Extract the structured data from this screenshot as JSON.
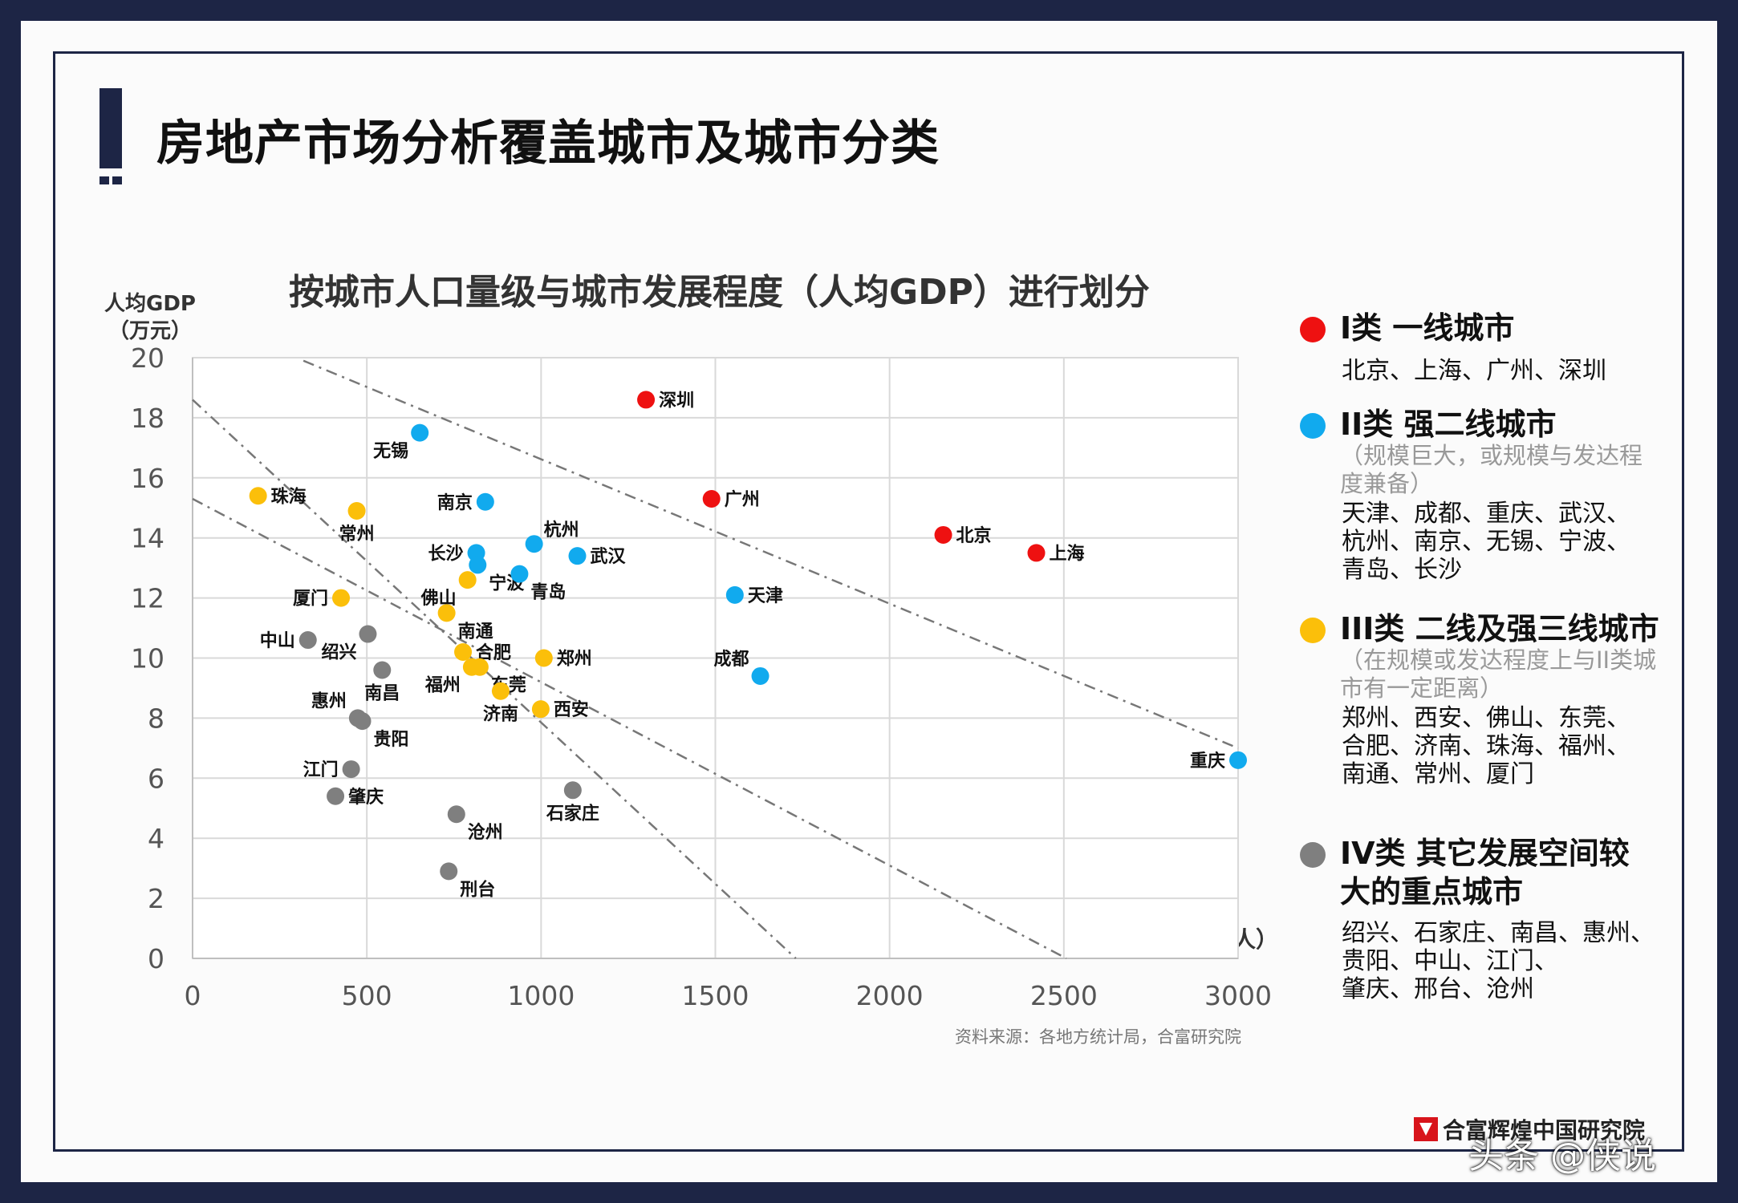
{
  "title": "房地产市场分析覆盖城市及城市分类",
  "chart_data": {
    "type": "scatter",
    "title": "按城市人口量级与城市发展程度（人均GDP）进行划分",
    "xlabel": "人口（万人）",
    "ylabel": "人均GDP（万元）",
    "ylabel_lines": [
      "人均GDP",
      "（万元）"
    ],
    "xlim": [
      0,
      3000
    ],
    "ylim": [
      0,
      20
    ],
    "xticks": [
      "0",
      "500",
      "1000",
      "1500",
      "2000",
      "2500",
      "3000"
    ],
    "yticks": [
      "0",
      "2",
      "4",
      "6",
      "8",
      "10",
      "12",
      "14",
      "16",
      "18",
      "20"
    ],
    "grid": true,
    "colors": {
      "I": "#ee1111",
      "II": "#11aaee",
      "III": "#fbbf0a",
      "IV": "#7f7f7f"
    },
    "points": [
      {
        "city": "深圳",
        "x": 1301,
        "y": 18.6,
        "class": "I",
        "label_pos": "right"
      },
      {
        "city": "广州",
        "x": 1489,
        "y": 15.3,
        "class": "I",
        "label_pos": "right"
      },
      {
        "city": "北京",
        "x": 2154,
        "y": 14.1,
        "class": "I",
        "label_pos": "right"
      },
      {
        "city": "上海",
        "x": 2421,
        "y": 13.5,
        "class": "I",
        "label_pos": "right"
      },
      {
        "city": "无锡",
        "x": 652,
        "y": 17.5,
        "class": "II",
        "label_pos": "below-left"
      },
      {
        "city": "南京",
        "x": 840,
        "y": 15.2,
        "class": "II",
        "label_pos": "left"
      },
      {
        "city": "长沙",
        "x": 814,
        "y": 13.5,
        "class": "II",
        "label_pos": "left"
      },
      {
        "city": "宁波",
        "x": 818,
        "y": 13.1,
        "class": "II",
        "label_pos": "below-right"
      },
      {
        "city": "杭州",
        "x": 980,
        "y": 13.8,
        "class": "II",
        "label_pos": "above-right"
      },
      {
        "city": "武汉",
        "x": 1104,
        "y": 13.4,
        "class": "II",
        "label_pos": "right"
      },
      {
        "city": "青岛",
        "x": 938,
        "y": 12.8,
        "class": "II",
        "label_pos": "below-right"
      },
      {
        "city": "天津",
        "x": 1556,
        "y": 12.1,
        "class": "II",
        "label_pos": "right"
      },
      {
        "city": "成都",
        "x": 1629,
        "y": 9.4,
        "class": "II",
        "label_pos": "above-left"
      },
      {
        "city": "重庆",
        "x": 3000,
        "y": 6.6,
        "class": "II",
        "label_pos": "left"
      },
      {
        "city": "珠海",
        "x": 188,
        "y": 15.4,
        "class": "III",
        "label_pos": "right"
      },
      {
        "city": "常州",
        "x": 471,
        "y": 14.9,
        "class": "III",
        "label_pos": "below"
      },
      {
        "city": "佛山",
        "x": 789,
        "y": 12.6,
        "class": "III",
        "label_pos": "below-left"
      },
      {
        "city": "厦门",
        "x": 426,
        "y": 12.0,
        "class": "III",
        "label_pos": "left"
      },
      {
        "city": "南通",
        "x": 729,
        "y": 11.5,
        "class": "III",
        "label_pos": "below-right"
      },
      {
        "city": "合肥",
        "x": 776,
        "y": 10.2,
        "class": "III",
        "label_pos": "right"
      },
      {
        "city": "东莞",
        "x": 824,
        "y": 9.7,
        "class": "III",
        "label_pos": "below-right"
      },
      {
        "city": "福州",
        "x": 801,
        "y": 9.7,
        "class": "III",
        "label_pos": "below-left"
      },
      {
        "city": "郑州",
        "x": 1008,
        "y": 10.0,
        "class": "III",
        "label_pos": "right"
      },
      {
        "city": "济南",
        "x": 884,
        "y": 8.9,
        "class": "III",
        "label_pos": "below"
      },
      {
        "city": "西安",
        "x": 999,
        "y": 8.3,
        "class": "III",
        "label_pos": "right"
      },
      {
        "city": "中山",
        "x": 331,
        "y": 10.6,
        "class": "IV",
        "label_pos": "left"
      },
      {
        "city": "绍兴",
        "x": 503,
        "y": 10.8,
        "class": "IV",
        "label_pos": "below-left"
      },
      {
        "city": "南昌",
        "x": 544,
        "y": 9.6,
        "class": "IV",
        "label_pos": "below"
      },
      {
        "city": "惠州",
        "x": 474,
        "y": 8.0,
        "class": "IV",
        "label_pos": "above-left"
      },
      {
        "city": "贵阳",
        "x": 487,
        "y": 7.9,
        "class": "IV",
        "label_pos": "below-right"
      },
      {
        "city": "江门",
        "x": 455,
        "y": 6.3,
        "class": "IV",
        "label_pos": "left"
      },
      {
        "city": "肇庆",
        "x": 410,
        "y": 5.4,
        "class": "IV",
        "label_pos": "right"
      },
      {
        "city": "沧州",
        "x": 757,
        "y": 4.8,
        "class": "IV",
        "label_pos": "below-right"
      },
      {
        "city": "石家庄",
        "x": 1091,
        "y": 5.6,
        "class": "IV",
        "label_pos": "below"
      },
      {
        "city": "刑台",
        "x": 735,
        "y": 2.9,
        "class": "IV",
        "label_pos": "below-right"
      }
    ],
    "dividers": [
      {
        "from": [
          318,
          19.9
        ],
        "to": [
          3000,
          7.0
        ]
      },
      {
        "from": [
          0,
          18.6
        ],
        "to": [
          1731,
          0
        ]
      },
      {
        "from": [
          0,
          15.3
        ],
        "to": [
          2507,
          0
        ]
      }
    ]
  },
  "source": "资料来源：各地方统计局，合富研究院",
  "legend": [
    {
      "class": "I",
      "head": [
        "I类 一线城市"
      ],
      "note": "",
      "cities": [
        "北京、上海、广州、深圳"
      ]
    },
    {
      "class": "II",
      "head": [
        "II类 强二线城市"
      ],
      "note": "（规模巨大，或规模与发达程度兼备）",
      "cities": [
        "天津、成都、重庆、武汉、",
        "杭州、南京、无锡、宁波、",
        "青岛、长沙"
      ]
    },
    {
      "class": "III",
      "head": [
        "III类 二线及强三线城市"
      ],
      "note": "（在规模或发达程度上与II类城市有一定距离）",
      "cities": [
        "郑州、西安、佛山、东莞、",
        "合肥、济南、珠海、福州、",
        "南通、常州、厦门"
      ]
    },
    {
      "class": "IV",
      "head": [
        "IV类 其它发展空间较",
        "大的重点城市"
      ],
      "note": "",
      "cities": [
        "绍兴、石家庄、南昌、惠州、",
        "贵阳、中山、江门、",
        "肇庆、邢台、沧州"
      ]
    }
  ],
  "logo_text": "合富辉煌中国研究院",
  "watermark": "头条 @侠说"
}
